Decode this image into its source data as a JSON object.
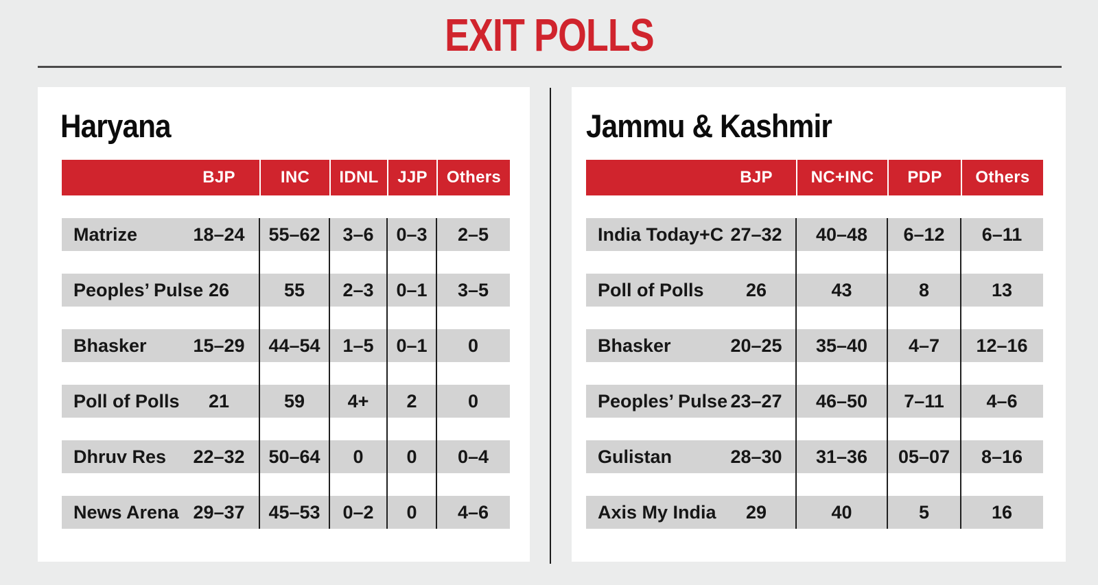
{
  "header": {
    "title": "EXIT POLLS"
  },
  "colors": {
    "accent_red": "#d0242d",
    "row_gray": "#d3d3d3",
    "page_bg": "#ebecec",
    "card_bg": "#ffffff",
    "divider_dark": "#1c1c1c",
    "header_text": "#ffffff",
    "body_text": "#161616"
  },
  "chart_data": [
    {
      "type": "table",
      "region": "Haryana",
      "columns": [
        "",
        "BJP",
        "INC",
        "IDNL",
        "JJP",
        "Others"
      ],
      "rows": [
        {
          "agency": "Matrize",
          "values": [
            "18–24",
            "55–62",
            "3–6",
            "0–3",
            "2–5"
          ]
        },
        {
          "agency": "Peoples’ Pulse",
          "values": [
            "26",
            "55",
            "2–3",
            "0–1",
            "3–5"
          ]
        },
        {
          "agency": "Bhasker",
          "values": [
            "15–29",
            "44–54",
            "1–5",
            "0–1",
            "0"
          ]
        },
        {
          "agency": "Poll of Polls",
          "values": [
            "21",
            "59",
            "4+",
            "2",
            "0"
          ]
        },
        {
          "agency": "Dhruv Res",
          "values": [
            "22–32",
            "50–64",
            "0",
            "0",
            "0–4"
          ]
        },
        {
          "agency": "News Arena",
          "values": [
            "29–37",
            "45–53",
            "0–2",
            "0",
            "4–6"
          ]
        }
      ]
    },
    {
      "type": "table",
      "region": "Jammu & Kashmir",
      "columns": [
        "",
        "BJP",
        "NC+INC",
        "PDP",
        "Others"
      ],
      "rows": [
        {
          "agency": "India Today+C",
          "values": [
            "27–32",
            "40–48",
            "6–12",
            "6–11"
          ]
        },
        {
          "agency": "Poll of Polls",
          "values": [
            "26",
            "43",
            "8",
            "13"
          ]
        },
        {
          "agency": "Bhasker",
          "values": [
            "20–25",
            "35–40",
            "4–7",
            "12–16"
          ]
        },
        {
          "agency": "Peoples’ Pulse",
          "values": [
            "23–27",
            "46–50",
            "7–11",
            "4–6"
          ]
        },
        {
          "agency": "Gulistan",
          "values": [
            "28–30",
            "31–36",
            "05–07",
            "8–16"
          ]
        },
        {
          "agency": "Axis My India",
          "values": [
            "29",
            "40",
            "5",
            "16"
          ]
        }
      ]
    }
  ]
}
